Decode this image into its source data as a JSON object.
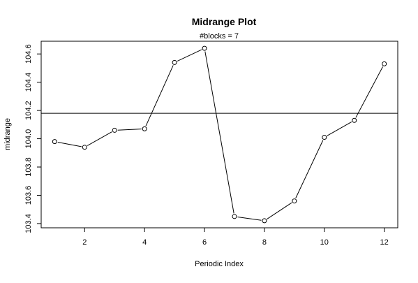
{
  "chart_data": {
    "type": "line",
    "title": "Midrange Plot",
    "subtitle": "#blocks =  7",
    "xlabel": "Periodic Index",
    "ylabel": "midrange",
    "x": [
      1,
      2,
      3,
      4,
      5,
      6,
      7,
      8,
      9,
      10,
      11,
      12
    ],
    "series": [
      {
        "values": [
          103.98,
          103.94,
          104.06,
          104.07,
          104.54,
          104.64,
          103.45,
          103.42,
          103.56,
          104.01,
          104.13,
          104.53
        ]
      }
    ],
    "reference_line": 104.18,
    "xlim": [
      0.55,
      12.45
    ],
    "ylim": [
      103.37,
      104.69
    ],
    "xticks": [
      2,
      4,
      6,
      8,
      10,
      12
    ],
    "xtick_labels": [
      "2",
      "4",
      "6",
      "8",
      "10",
      "12"
    ],
    "yticks": [
      103.4,
      103.6,
      103.8,
      104.0,
      104.2,
      104.4,
      104.6
    ],
    "ytick_labels": [
      "103.4",
      "103.6",
      "103.8",
      "104.0",
      "104.2",
      "104.4",
      "104.6"
    ],
    "grid": false,
    "legend": "none",
    "line_color": "#000000",
    "marker": "open-circle"
  }
}
